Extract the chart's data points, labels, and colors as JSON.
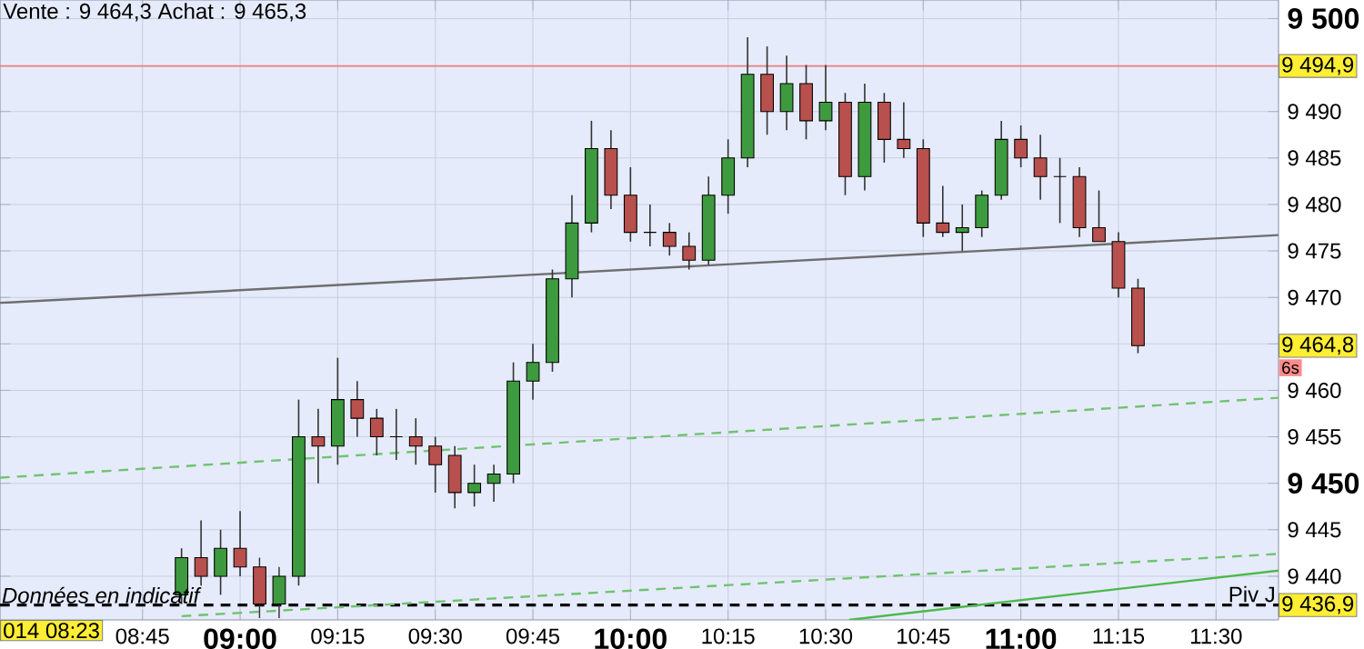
{
  "chart_data": {
    "type": "candlestick",
    "title": "Vente : 9 464,3 Achat : 9 465,3",
    "x": [
      8.85,
      8.9,
      8.95,
      9.0,
      9.05,
      9.1,
      9.15,
      9.2,
      9.25,
      9.3,
      9.35,
      9.4,
      9.45,
      9.5,
      9.55,
      9.6,
      9.65,
      9.7,
      9.75,
      9.8,
      9.85,
      9.9,
      9.95,
      10.0,
      10.05,
      10.1,
      10.15,
      10.2,
      10.25,
      10.3,
      10.35,
      10.4,
      10.45,
      10.5,
      10.55,
      10.6,
      10.65,
      10.7,
      10.75,
      10.8,
      10.85,
      10.9,
      10.95,
      11.0,
      11.05,
      11.1,
      11.15,
      11.2,
      11.25,
      11.3
    ],
    "ohlc": [
      [
        9438,
        9443,
        9437,
        9442
      ],
      [
        9442,
        9446,
        9439,
        9440
      ],
      [
        9440,
        9445,
        9438,
        9443
      ],
      [
        9443,
        9447,
        9440,
        9441
      ],
      [
        9441,
        9442,
        9435.5,
        9437
      ],
      [
        9437,
        9441,
        9435.5,
        9440
      ],
      [
        9440,
        9459,
        9439,
        9455
      ],
      [
        9455,
        9458,
        9450,
        9454
      ],
      [
        9454,
        9463.5,
        9452,
        9459
      ],
      [
        9459,
        9461,
        9455,
        9457
      ],
      [
        9457,
        9458,
        9453,
        9455
      ],
      [
        9455,
        9458,
        9452.5,
        9455
      ],
      [
        9455,
        9457,
        9452,
        9454
      ],
      [
        9454,
        9455,
        9449,
        9452
      ],
      [
        9453,
        9454,
        9447.3,
        9449
      ],
      [
        9449,
        9452,
        9447.5,
        9450
      ],
      [
        9450,
        9452,
        9448,
        9451
      ],
      [
        9451,
        9463,
        9450,
        9461
      ],
      [
        9461,
        9465,
        9459,
        9463
      ],
      [
        9463,
        9473,
        9462,
        9472
      ],
      [
        9472,
        9481,
        9470,
        9478
      ],
      [
        9478,
        9489,
        9477,
        9486
      ],
      [
        9486,
        9488,
        9479.5,
        9481
      ],
      [
        9481,
        9484,
        9476,
        9477
      ],
      [
        9477,
        9480,
        9475.5,
        9477
      ],
      [
        9477,
        9478,
        9474.5,
        9475.5
      ],
      [
        9475.5,
        9477,
        9473,
        9474
      ],
      [
        9474,
        9483,
        9473.5,
        9481
      ],
      [
        9481,
        9487,
        9479,
        9485
      ],
      [
        9485,
        9498,
        9484,
        9494
      ],
      [
        9494,
        9497,
        9487.5,
        9490
      ],
      [
        9490,
        9496,
        9488,
        9493
      ],
      [
        9493,
        9495,
        9487,
        9489
      ],
      [
        9489,
        9495,
        9488,
        9491
      ],
      [
        9491,
        9492,
        9481,
        9483
      ],
      [
        9483,
        9493,
        9481.5,
        9491
      ],
      [
        9491,
        9492,
        9484.5,
        9487
      ],
      [
        9487,
        9491,
        9485,
        9486
      ],
      [
        9486,
        9487,
        9476.5,
        9478
      ],
      [
        9478,
        9482,
        9476.5,
        9477
      ],
      [
        9477,
        9480,
        9475,
        9477.5
      ],
      [
        9477.5,
        9481.5,
        9476.5,
        9481
      ],
      [
        9481,
        9489,
        9480.5,
        9487
      ],
      [
        9487,
        9488.5,
        9484,
        9485
      ],
      [
        9485,
        9487.5,
        9480.5,
        9483
      ],
      [
        9483,
        9485,
        9478,
        9483
      ],
      [
        9483,
        9484,
        9476.5,
        9477.5
      ],
      [
        9477.5,
        9481.5,
        9476,
        9476
      ],
      [
        9476,
        9477,
        9470,
        9471
      ],
      [
        9471,
        9472,
        9464,
        9464.8
      ]
    ],
    "series": [
      {
        "type": "line",
        "color": "#6e6e6e",
        "line_style": "solid",
        "x": [
          8.385,
          11.66
        ],
        "values": [
          9469.4,
          9476.7
        ]
      },
      {
        "type": "line",
        "color": "#6fc46f",
        "line_style": "dashed",
        "x": [
          8.385,
          11.66
        ],
        "values": [
          9450.6,
          9459.2
        ]
      },
      {
        "type": "line",
        "color": "#6fc46f",
        "line_style": "dashed",
        "x": [
          8.85,
          11.66
        ],
        "values": [
          9435.7,
          9442.4
        ]
      },
      {
        "type": "line",
        "color": "#4cb84c",
        "line_style": "solid",
        "x": [
          10.56,
          11.66
        ],
        "values": [
          9435.3,
          9440.6
        ]
      }
    ],
    "xlim": [
      8.385,
      11.66
    ],
    "ylim": [
      9435.3,
      9502
    ],
    "xticks": [
      {
        "value": 8.75,
        "label": "08:45"
      },
      {
        "value": 9,
        "label": "09:00"
      },
      {
        "value": 9.25,
        "label": "09:15"
      },
      {
        "value": 9.5,
        "label": "09:30"
      },
      {
        "value": 9.75,
        "label": "09:45"
      },
      {
        "value": 10,
        "label": "10:00"
      },
      {
        "value": 10.25,
        "label": "10:15"
      },
      {
        "value": 10.5,
        "label": "10:30"
      },
      {
        "value": 10.75,
        "label": "10:45"
      },
      {
        "value": 11,
        "label": "11:00"
      },
      {
        "value": 11.25,
        "label": "11:15"
      },
      {
        "value": 11.5,
        "label": "11:30"
      }
    ],
    "yticks": [
      {
        "value": 9440,
        "label": "9 440"
      },
      {
        "value": 9445,
        "label": "9 445"
      },
      {
        "value": 9450,
        "label": "9 450"
      },
      {
        "value": 9455,
        "label": "9 455"
      },
      {
        "value": 9460,
        "label": "9 460"
      },
      {
        "value": 9465,
        "label": null
      },
      {
        "value": 9470,
        "label": "9 470"
      },
      {
        "value": 9475,
        "label": "9 475"
      },
      {
        "value": 9480,
        "label": "9 480"
      },
      {
        "value": 9485,
        "label": "9 485"
      },
      {
        "value": 9490,
        "label": "9 490"
      },
      {
        "value": 9500,
        "label": "9 500"
      }
    ],
    "grid": true,
    "ref_lines": [
      {
        "axis": "y",
        "value": 9494.9,
        "label": "9 494,9",
        "color": "#e88080",
        "line_style": "solid"
      },
      {
        "axis": "y",
        "value": 9436.9,
        "label": "9 436,9",
        "color": "#000000",
        "line_style": "dashed"
      }
    ],
    "annotations": [
      "9 464,8",
      "6s",
      "Piv J",
      "Données en indicatif",
      "014 08:23"
    ]
  }
}
